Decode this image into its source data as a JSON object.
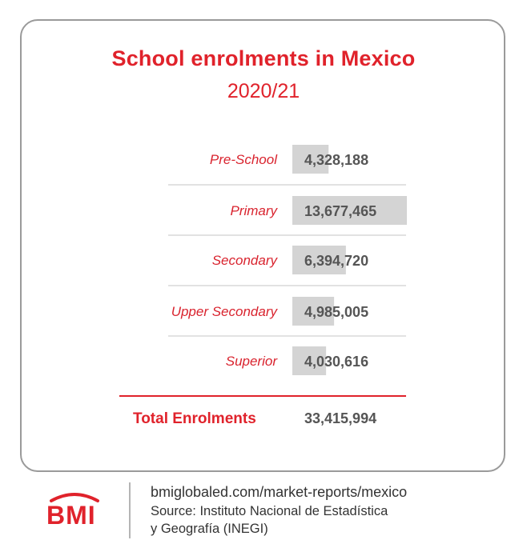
{
  "chart_data": {
    "type": "bar",
    "title": "School enrolments in Mexico",
    "subtitle": "2020/21",
    "categories": [
      "Pre-School",
      "Primary",
      "Secondary",
      "Upper Secondary",
      "Superior"
    ],
    "values": [
      4328188,
      13677465,
      6394720,
      4985005,
      4030616
    ],
    "value_labels": [
      "4,328,188",
      "13,677,465",
      "6,394,720",
      "4,985,005",
      "4,030,616"
    ],
    "total": {
      "label": "Total Enrolments",
      "value": 33415994,
      "value_label": "33,415,994"
    },
    "bar_color": "#d4d4d4",
    "label_color": "#e0222b"
  },
  "branding": {
    "logo_text": "BMI",
    "url": "bmiglobaled.com/market-reports/mexico",
    "source_line1": "Source: Instituto Nacional de Estadística",
    "source_line2": "y Geografía (INEGI)",
    "accent_color": "#e0222b"
  }
}
